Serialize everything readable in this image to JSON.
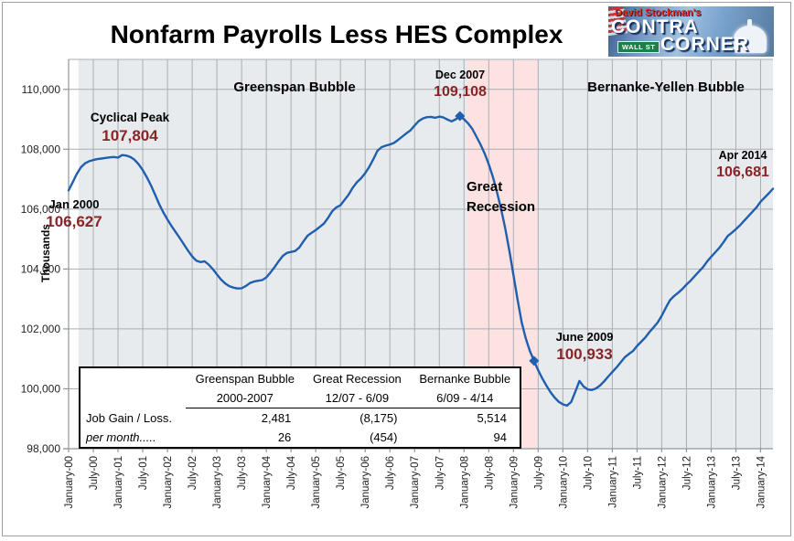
{
  "frame": {
    "title": "Nonfarm Payrolls Less HES Complex"
  },
  "logo": {
    "tagline": "David Stockman's",
    "brand_top": "CONTRA",
    "brand_bottom": "CORNER",
    "sign": "WALL ST"
  },
  "chart_data": {
    "type": "line",
    "title": "Nonfarm Payrolls Less HES Complex",
    "ylabel": "Thousands",
    "ylim": [
      98000,
      111000
    ],
    "y_ticks": [
      98000,
      100000,
      102000,
      104000,
      106000,
      108000,
      110000
    ],
    "x_tick_labels": [
      "January-00",
      "July-00",
      "January-01",
      "July-01",
      "January-02",
      "July-02",
      "January-03",
      "July-03",
      "January-04",
      "July-04",
      "January-05",
      "July-05",
      "January-06",
      "July-06",
      "January-07",
      "July-07",
      "January-08",
      "July-08",
      "January-09",
      "July-09",
      "January-10",
      "July-10",
      "January-11",
      "July-11",
      "January-12",
      "July-12",
      "January-13",
      "July-13",
      "January-14"
    ],
    "x_unit": "month",
    "months_span": 171,
    "grid": true,
    "series": [
      {
        "name": "Nonfarm Payrolls Less HES Complex (thousands)",
        "color": "#1f5fad",
        "values": [
          106627,
          106900,
          107180,
          107400,
          107530,
          107600,
          107640,
          107670,
          107690,
          107710,
          107730,
          107740,
          107720,
          107804,
          107790,
          107740,
          107650,
          107500,
          107300,
          107060,
          106790,
          106480,
          106160,
          105890,
          105650,
          105430,
          105230,
          105030,
          104820,
          104610,
          104420,
          104280,
          104230,
          104260,
          104150,
          104000,
          103820,
          103650,
          103520,
          103430,
          103380,
          103350,
          103360,
          103430,
          103530,
          103580,
          103610,
          103630,
          103720,
          103880,
          104060,
          104260,
          104440,
          104540,
          104570,
          104600,
          104720,
          104920,
          105110,
          105210,
          105300,
          105410,
          105520,
          105710,
          105930,
          106060,
          106130,
          106310,
          106490,
          106720,
          106900,
          107030,
          107200,
          107410,
          107670,
          107950,
          108070,
          108120,
          108160,
          108210,
          108310,
          108420,
          108530,
          108630,
          108790,
          108940,
          109030,
          109070,
          109080,
          109050,
          109090,
          109060,
          108990,
          108930,
          109000,
          109108,
          109000,
          108860,
          108680,
          108420,
          108160,
          107860,
          107500,
          107080,
          106570,
          106000,
          105360,
          104620,
          103800,
          102980,
          102220,
          101680,
          101260,
          100933,
          100620,
          100350,
          100110,
          99890,
          99710,
          99570,
          99480,
          99440,
          99560,
          99900,
          100260,
          100080,
          99980,
          99960,
          100010,
          100110,
          100250,
          100410,
          100560,
          100710,
          100880,
          101050,
          101160,
          101260,
          101430,
          101570,
          101710,
          101890,
          102050,
          102210,
          102440,
          102710,
          102960,
          103100,
          103210,
          103330,
          103480,
          103610,
          103760,
          103910,
          104060,
          104250,
          104410,
          104560,
          104710,
          104900,
          105100,
          105210,
          105330,
          105460,
          105610,
          105760,
          105910,
          106060,
          106250,
          106390,
          106530,
          106681
        ]
      }
    ],
    "bands": [
      {
        "name": "Greenspan Bubble",
        "month_start": 2.4,
        "month_end": 96.7,
        "fill": "#e7ebee"
      },
      {
        "name": "Great Recession",
        "month_start": 96.7,
        "month_end": 113.9,
        "fill": "#fde2e2"
      },
      {
        "name": "Bernanke-Yellen Bubble",
        "month_start": 113.9,
        "month_end": 171,
        "fill": "#e7ebee"
      }
    ],
    "markers": [
      {
        "label": "Dec 2007",
        "month_index": 95,
        "value": 109108
      },
      {
        "label": "June 2009",
        "month_index": 113,
        "value": 100933
      }
    ]
  },
  "annotations": {
    "cyclical_peak": {
      "label": "Cyclical Peak",
      "value": "107,804"
    },
    "jan_2000": {
      "label": "Jan 2000",
      "value": "106,627"
    },
    "dec_2007": {
      "label": "Dec 2007",
      "value": "109,108"
    },
    "june_2009": {
      "label": "June 2009",
      "value": "100,933"
    },
    "apr_2014": {
      "label": "Apr 2014",
      "value": "106,681"
    },
    "greenspan_bubble": "Greenspan Bubble",
    "bernanke_yellen_bubble": "Bernanke-Yellen Bubble",
    "great_recession": "Great Recession"
  },
  "table": {
    "col_headers": [
      "Greenspan Bubble",
      "Great Recession",
      "Bernanke Bubble"
    ],
    "col_periods": [
      "2000-2007",
      "12/07 - 6/09",
      "6/09 - 4/14"
    ],
    "rows": [
      {
        "label": "Job Gain / Loss.",
        "values": [
          "2,481",
          "(8,175)",
          "5,514"
        ]
      },
      {
        "label": "per month.....",
        "values": [
          "26",
          "(454)",
          "94"
        ]
      }
    ]
  },
  "colors": {
    "line": "#1f5fad",
    "annotation_value": "#8b2424",
    "band_gray": "#e7ebee",
    "band_pink": "#fde2e2",
    "gridline": "#a9aeb4",
    "axis": "#8f959b"
  }
}
